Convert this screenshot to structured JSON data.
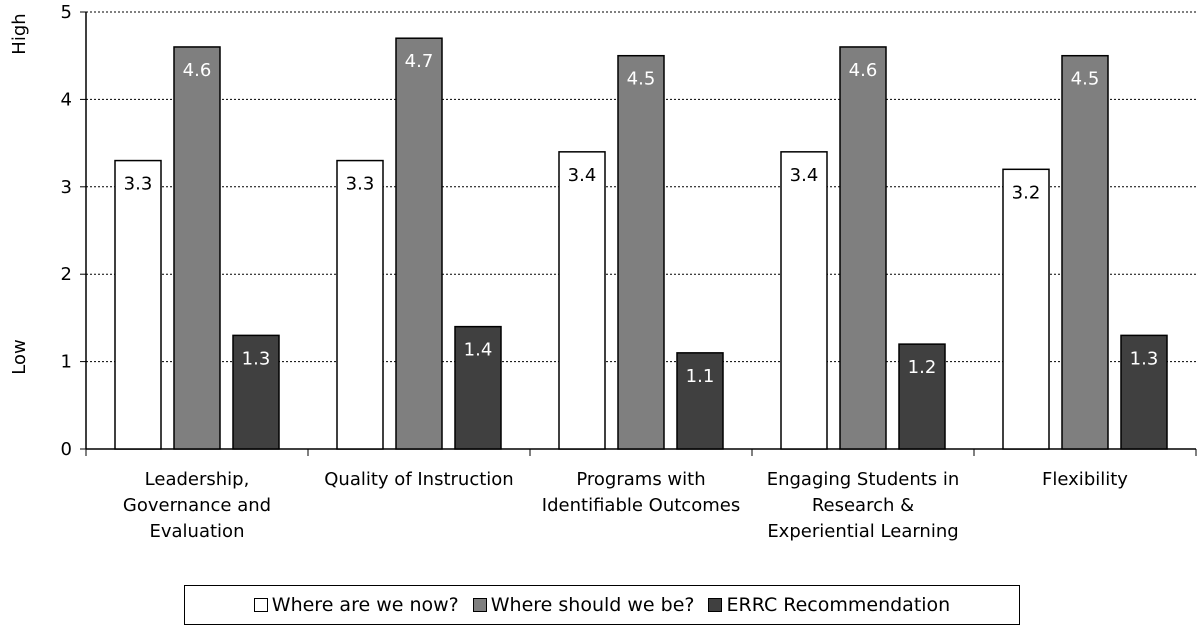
{
  "chart_data": {
    "type": "bar",
    "categories": [
      [
        "Leadership,",
        "Governance and",
        "Evaluation"
      ],
      [
        "Quality of Instruction"
      ],
      [
        "Programs with",
        "Identifiable Outcomes"
      ],
      [
        "Engaging Students in",
        "Research &",
        "Experiential Learning"
      ],
      [
        "Flexibility"
      ]
    ],
    "series": [
      {
        "name": "Where are we now?",
        "values": [
          3.3,
          3.3,
          3.4,
          3.4,
          3.2
        ],
        "color": "#ffffff",
        "label_color": "#000000"
      },
      {
        "name": "Where should we be?",
        "values": [
          4.6,
          4.7,
          4.5,
          4.6,
          4.5
        ],
        "color": "#7f7f7f",
        "label_color": "#ffffff"
      },
      {
        "name": "ERRC Recommendation",
        "values": [
          1.3,
          1.4,
          1.1,
          1.2,
          1.3
        ],
        "color": "#404040",
        "label_color": "#ffffff"
      }
    ],
    "value_labels": [
      [
        "3.3",
        "3.3",
        "3.4",
        "3.4",
        "3.2"
      ],
      [
        "4.6",
        "4.7",
        "4.5",
        "4.6",
        "4.5"
      ],
      [
        "1.3",
        "1.4",
        "1.1",
        "1.2",
        "1.3"
      ]
    ],
    "ylim": [
      0,
      5
    ],
    "yticks": [
      "0",
      "1",
      "2",
      "3",
      "4",
      "5"
    ],
    "ylabel_high": "High",
    "ylabel_low": "Low",
    "grid": true,
    "legend_position": "bottom"
  }
}
